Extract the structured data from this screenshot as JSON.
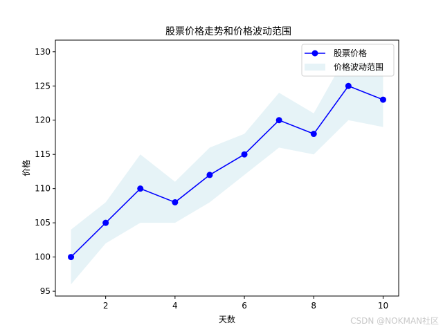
{
  "chart_data": {
    "type": "line",
    "title": "股票价格走势和价格波动范围",
    "xlabel": "天数",
    "ylabel": "价格",
    "x": [
      1,
      2,
      3,
      4,
      5,
      6,
      7,
      8,
      9,
      10
    ],
    "series": [
      {
        "name": "股票价格",
        "kind": "line-marker",
        "color": "#0000ff",
        "values": [
          100,
          105,
          110,
          108,
          112,
          115,
          120,
          118,
          125,
          123
        ]
      },
      {
        "name": "价格波动范围",
        "kind": "fill-between",
        "color": "#add8e6",
        "alpha": 0.3,
        "lower": [
          96,
          102,
          105,
          105,
          108,
          112,
          116,
          115,
          120,
          119
        ],
        "upper": [
          104,
          108,
          115,
          111,
          116,
          118,
          124,
          121,
          130,
          127
        ]
      }
    ],
    "xticks": [
      2,
      4,
      6,
      8,
      10
    ],
    "yticks": [
      95,
      100,
      105,
      110,
      115,
      120,
      125,
      130
    ],
    "xlim": [
      0.55,
      10.45
    ],
    "ylim": [
      94.3,
      131.7
    ],
    "grid": false,
    "legend_position": "upper right"
  },
  "watermark": "CSDN @NOKMAN社区"
}
